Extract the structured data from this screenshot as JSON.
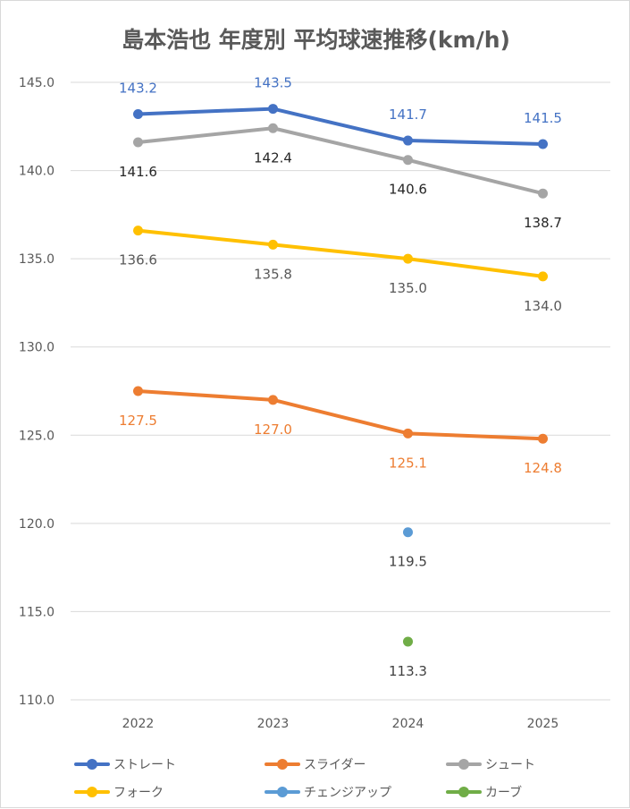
{
  "chart_data": {
    "type": "line",
    "title": "島本浩也 年度別 平均球速推移(km/h)",
    "xlabel": "",
    "ylabel": "",
    "categories": [
      "2022",
      "2023",
      "2024",
      "2025"
    ],
    "ylim": [
      110,
      145
    ],
    "yticks": [
      "110.0",
      "115.0",
      "120.0",
      "125.0",
      "130.0",
      "135.0",
      "140.0",
      "145.0"
    ],
    "grid": true,
    "legend_position": "bottom",
    "series": [
      {
        "name": "ストレート",
        "color": "#4472C4",
        "label_color": "#4472C4",
        "label_pos": "above",
        "values": [
          143.2,
          143.5,
          141.7,
          141.5
        ]
      },
      {
        "name": "スライダー",
        "color": "#ED7D31",
        "label_color": "#ED7D31",
        "label_pos": "below",
        "values": [
          127.5,
          127.0,
          125.1,
          124.8
        ]
      },
      {
        "name": "シュート",
        "color": "#A5A5A5",
        "label_color": "#262626",
        "label_pos": "below",
        "values": [
          141.6,
          142.4,
          140.6,
          138.7
        ]
      },
      {
        "name": "フォーク",
        "color": "#FFC000",
        "label_color": "#595959",
        "label_pos": "below",
        "values": [
          136.6,
          135.8,
          135.0,
          134.0
        ]
      },
      {
        "name": "チェンジアップ",
        "color": "#5B9BD5",
        "label_color": "#404040",
        "label_pos": "below",
        "values": [
          null,
          null,
          119.5,
          null
        ]
      },
      {
        "name": "カーブ",
        "color": "#70AD47",
        "label_color": "#404040",
        "label_pos": "below",
        "values": [
          null,
          null,
          113.3,
          null
        ]
      }
    ]
  }
}
